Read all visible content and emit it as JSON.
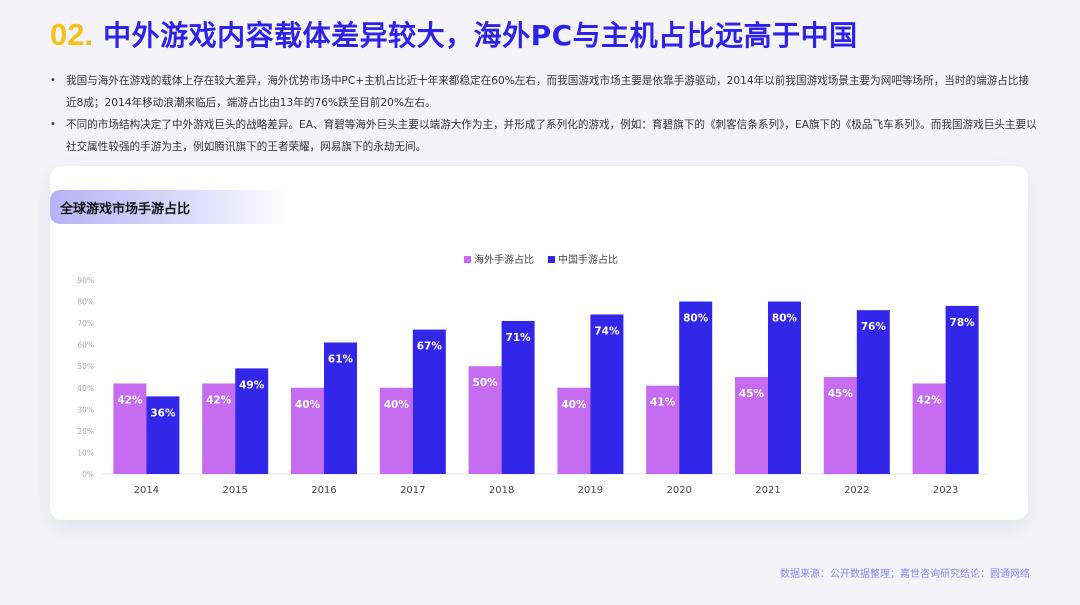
{
  "header": {
    "number": "02.",
    "title": "中外游戏内容载体差异较大，海外PC与主机占比远高于中国"
  },
  "bullets": [
    "我国与海外在游戏的载体上存在较大差异，海外优势市场中PC+主机占比近十年来都稳定在60%左右，而我国游戏市场主要是依靠手游驱动，2014年以前我国游戏场景主要为网吧等场所，当时的端游占比接近8成；2014年移动浪潮来临后，端游占比由13年的76%跌至目前20%左右。",
    "不同的市场结构决定了中外游戏巨头的战略差异。EA、育碧等海外巨头主要以端游大作为主，并形成了系列化的游戏，例如：育碧旗下的《刺客信条系列》，EA旗下的《极品飞车系列》。而我国游戏巨头主要以社交属性较强的手游为主，例如腾讯旗下的王者荣耀，网易旗下的永劫无间。"
  ],
  "chart_tag": "全球游戏市场手游占比",
  "source": "数据来源：公开数据整理；嘉世咨询研究结论：圆通网络",
  "colors": {
    "overseas": "#c56cf0",
    "china": "#3226e8",
    "accent_yellow": "#f5c21b",
    "title_blue": "#2d22e6"
  },
  "chart_data": {
    "type": "bar",
    "categories": [
      "2014",
      "2015",
      "2016",
      "2017",
      "2018",
      "2019",
      "2020",
      "2021",
      "2022",
      "2023"
    ],
    "series": [
      {
        "name": "海外手游占比",
        "values": [
          42,
          42,
          40,
          40,
          50,
          40,
          41,
          45,
          45,
          42
        ]
      },
      {
        "name": "中国手游占比",
        "values": [
          36,
          49,
          61,
          67,
          71,
          74,
          80,
          80,
          76,
          78
        ]
      }
    ],
    "ylim": [
      0,
      90
    ],
    "yticks": [
      "0%",
      "10%",
      "20%",
      "30%",
      "40%",
      "50%",
      "60%",
      "70%",
      "80%",
      "90%"
    ],
    "value_suffix": "%",
    "legend_position": "top-center",
    "grid": false
  }
}
